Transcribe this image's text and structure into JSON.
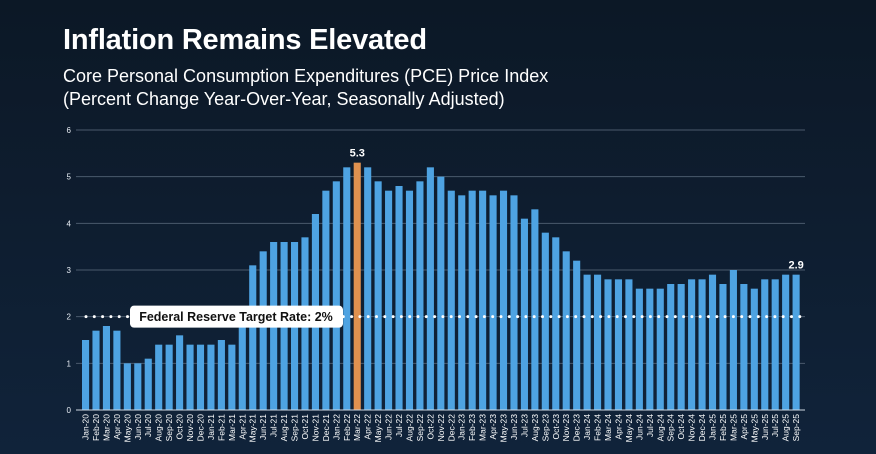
{
  "chart_data": {
    "type": "bar",
    "title": "Inflation Remains Elevated",
    "subtitle": [
      "Core Personal Consumption Expenditures (PCE) Price Index",
      "(Percent Change Year-Over-Year, Seasonally Adjusted)"
    ],
    "xlabel": "",
    "ylabel": "",
    "ylim": [
      0,
      6
    ],
    "yticks": [
      "0",
      "1",
      "2",
      "3",
      "4",
      "5",
      "6"
    ],
    "grid": true,
    "categories": [
      "Jan-20",
      "Feb-20",
      "Mar-20",
      "Apr-20",
      "May-20",
      "Jun-20",
      "Jul-20",
      "Aug-20",
      "Sep-20",
      "Oct-20",
      "Nov-20",
      "Dec-20",
      "Jan-21",
      "Feb-21",
      "Mar-21",
      "Apr-21",
      "May-21",
      "Jun-21",
      "Jul-21",
      "Aug-21",
      "Sep-21",
      "Oct-21",
      "Nov-21",
      "Dec-21",
      "Jan-22",
      "Feb-22",
      "Mar-22",
      "Apr-22",
      "May-22",
      "Jun-22",
      "Jul-22",
      "Aug-22",
      "Sep-22",
      "Oct-22",
      "Nov-22",
      "Dec-22",
      "Jan-23",
      "Feb-23",
      "Mar-23",
      "Apr-23",
      "May-23",
      "Jun-23",
      "Jul-23",
      "Aug-23",
      "Sep-23",
      "Oct-23",
      "Nov-23",
      "Dec-23",
      "Jan-24",
      "Feb-24",
      "Mar-24",
      "Apr-24",
      "May-24",
      "Jun-24",
      "Jul-24",
      "Aug-24",
      "Sep-24",
      "Oct-24",
      "Nov-24",
      "Dec-24",
      "Jan-25",
      "Feb-25",
      "Mar-25",
      "Apr-25",
      "May-25",
      "Jun-25",
      "Jul-25",
      "Aug-25",
      "Sep-25"
    ],
    "values": [
      1.5,
      1.7,
      1.8,
      1.7,
      1.0,
      1.0,
      1.1,
      1.4,
      1.4,
      1.6,
      1.4,
      1.4,
      1.4,
      1.5,
      1.4,
      2.0,
      3.1,
      3.4,
      3.6,
      3.6,
      3.6,
      3.7,
      4.2,
      4.7,
      4.9,
      5.2,
      5.3,
      5.2,
      4.9,
      4.7,
      4.8,
      4.7,
      4.9,
      5.2,
      5.0,
      4.7,
      4.6,
      4.7,
      4.7,
      4.6,
      4.7,
      4.6,
      4.1,
      4.3,
      3.8,
      3.7,
      3.4,
      3.2,
      2.9,
      2.9,
      2.8,
      2.8,
      2.8,
      2.6,
      2.6,
      2.6,
      2.7,
      2.7,
      2.8,
      2.8,
      2.9,
      2.7,
      3.0,
      2.7,
      2.6,
      2.8,
      2.8,
      2.9,
      2.9
    ],
    "highlight_index": 26,
    "data_labels": [
      {
        "index": 26,
        "text": "5.3"
      },
      {
        "index": 68,
        "text": "2.9"
      }
    ],
    "reference_line": {
      "value": 2,
      "label": "Federal Reserve Target Rate: 2%"
    },
    "colors": {
      "bar": "#4ea3e2",
      "highlight": "#e0914f",
      "grid": "#4a5a6c",
      "background": "#0f1f33"
    }
  }
}
